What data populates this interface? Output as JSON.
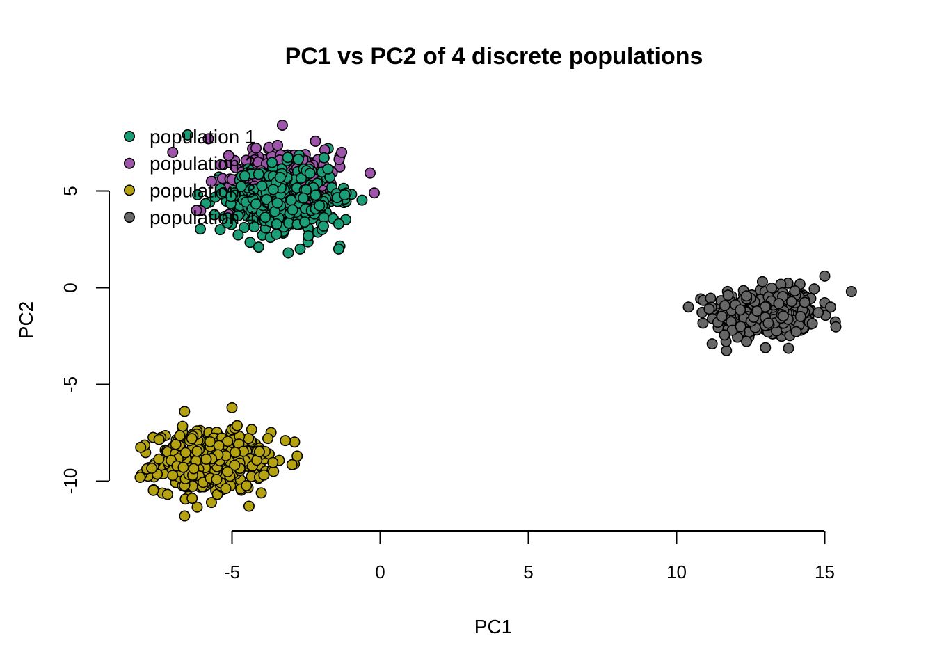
{
  "chart_data": {
    "type": "scatter",
    "title": "PC1 vs PC2 of 4 discrete populations",
    "xlabel": "PC1",
    "ylabel": "PC2",
    "xlim": [
      -9.2,
      16
    ],
    "ylim": [
      -12.5,
      9
    ],
    "xticks": [
      -5,
      0,
      5,
      10,
      15
    ],
    "yticks": [
      -10,
      -5,
      0,
      5
    ],
    "legend_position": "top-left",
    "series": [
      {
        "name": "population 1",
        "color": "#1b9e77",
        "center": [
          -3.3,
          4.6
        ],
        "spread": [
          1.1,
          1.0
        ],
        "count": 320,
        "points": [
          [
            -6.5,
            7.9
          ],
          [
            -1.2,
            4.8
          ],
          [
            -1.4,
            2.0
          ],
          [
            -3.1,
            1.8
          ],
          [
            -4.1,
            2.1
          ],
          [
            -2.7,
            2.0
          ],
          [
            -5.4,
            3.0
          ],
          [
            -1.4,
            3.3
          ]
        ]
      },
      {
        "name": "population 2",
        "color": "#9c55a8",
        "center": [
          -3.2,
          5.6
        ],
        "spread": [
          1.1,
          0.9
        ],
        "count": 320,
        "points": [
          [
            -3.3,
            8.4
          ],
          [
            -0.2,
            4.9
          ],
          [
            -7.0,
            7.0
          ],
          [
            -1.3,
            7.0
          ],
          [
            -6.2,
            4.0
          ],
          [
            -5.8,
            7.7
          ]
        ]
      },
      {
        "name": "population 3",
        "color": "#b5a211",
        "center": [
          -5.7,
          -9.0
        ],
        "spread": [
          1.1,
          0.9
        ],
        "count": 420,
        "points": [
          [
            -8.1,
            -9.8
          ],
          [
            -2.8,
            -8.7
          ],
          [
            -6.6,
            -11.8
          ],
          [
            -5.0,
            -6.2
          ],
          [
            -6.6,
            -6.4
          ],
          [
            -3.2,
            -7.9
          ]
        ]
      },
      {
        "name": "population 4",
        "color": "#666666",
        "center": [
          13.0,
          -1.3
        ],
        "spread": [
          1.0,
          0.75
        ],
        "count": 420,
        "points": [
          [
            15.9,
            -0.2
          ],
          [
            15.0,
            0.6
          ],
          [
            11.1,
            -1.1
          ],
          [
            11.2,
            -2.9
          ],
          [
            13.0,
            -3.1
          ],
          [
            15.2,
            -1.0
          ]
        ]
      }
    ]
  }
}
